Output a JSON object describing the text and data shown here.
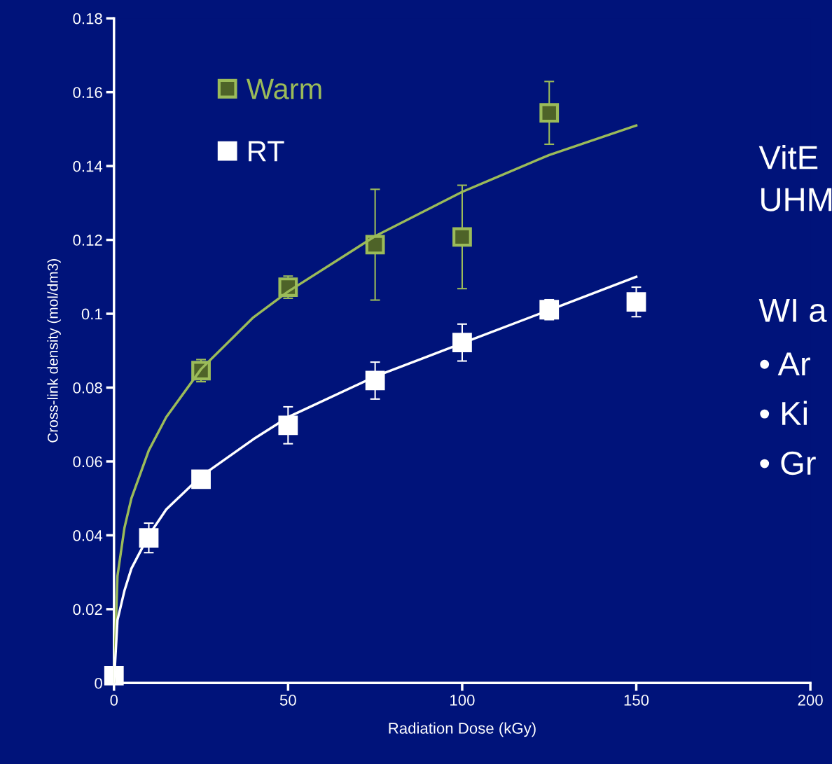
{
  "chart_data": {
    "type": "scatter",
    "xlabel": "Radiation Dose (kGy)",
    "ylabel": "Cross-link density (mol/dm3)",
    "xlim": [
      0,
      200
    ],
    "xticks": [
      0,
      50,
      100,
      150,
      200
    ],
    "ylim": [
      0,
      0.18
    ],
    "yticks": [
      0,
      0.02,
      0.04,
      0.06,
      0.08,
      0.1,
      0.12,
      0.14,
      0.16,
      0.18
    ],
    "grid": false,
    "legend": "top left",
    "series": [
      {
        "name": "Warm",
        "marker": "square",
        "color": "#9bbb59",
        "x": [
          25,
          50,
          75,
          100,
          125
        ],
        "values": [
          0.0846,
          0.1072,
          0.1187,
          0.1208,
          0.1544
        ],
        "errors": [
          0.003,
          0.003,
          0.015,
          0.014,
          0.0085
        ]
      },
      {
        "name": "RT",
        "marker": "square",
        "color": "#ffffff",
        "x": [
          0,
          10,
          25,
          50,
          75,
          100,
          125,
          150
        ],
        "values": [
          0.002,
          0.0393,
          0.0552,
          0.0698,
          0.0819,
          0.0922,
          0.1011,
          0.1032
        ],
        "errors": [
          null,
          0.004,
          null,
          0.005,
          0.005,
          0.005,
          0.0027,
          0.004
        ]
      },
      {
        "type": "line",
        "color": "#9bbb59",
        "x": [
          0,
          1,
          3,
          5,
          10,
          15,
          25,
          40,
          50,
          75,
          100,
          125,
          150
        ],
        "values": [
          0,
          0.029,
          0.042,
          0.05,
          0.063,
          0.072,
          0.085,
          0.099,
          0.106,
          0.121,
          0.133,
          0.143,
          0.151
        ]
      },
      {
        "type": "line",
        "color": "#ffffff",
        "x": [
          0,
          1,
          3,
          5,
          10,
          15,
          25,
          40,
          50,
          75,
          100,
          125,
          150
        ],
        "values": [
          0,
          0.017,
          0.025,
          0.031,
          0.04,
          0.047,
          0.056,
          0.066,
          0.072,
          0.083,
          0.092,
          0.101,
          0.11
        ]
      }
    ],
    "annotations": [
      "VitE",
      "UHM",
      "WI a",
      "• Ar",
      "• Ki",
      "• Gr"
    ]
  }
}
